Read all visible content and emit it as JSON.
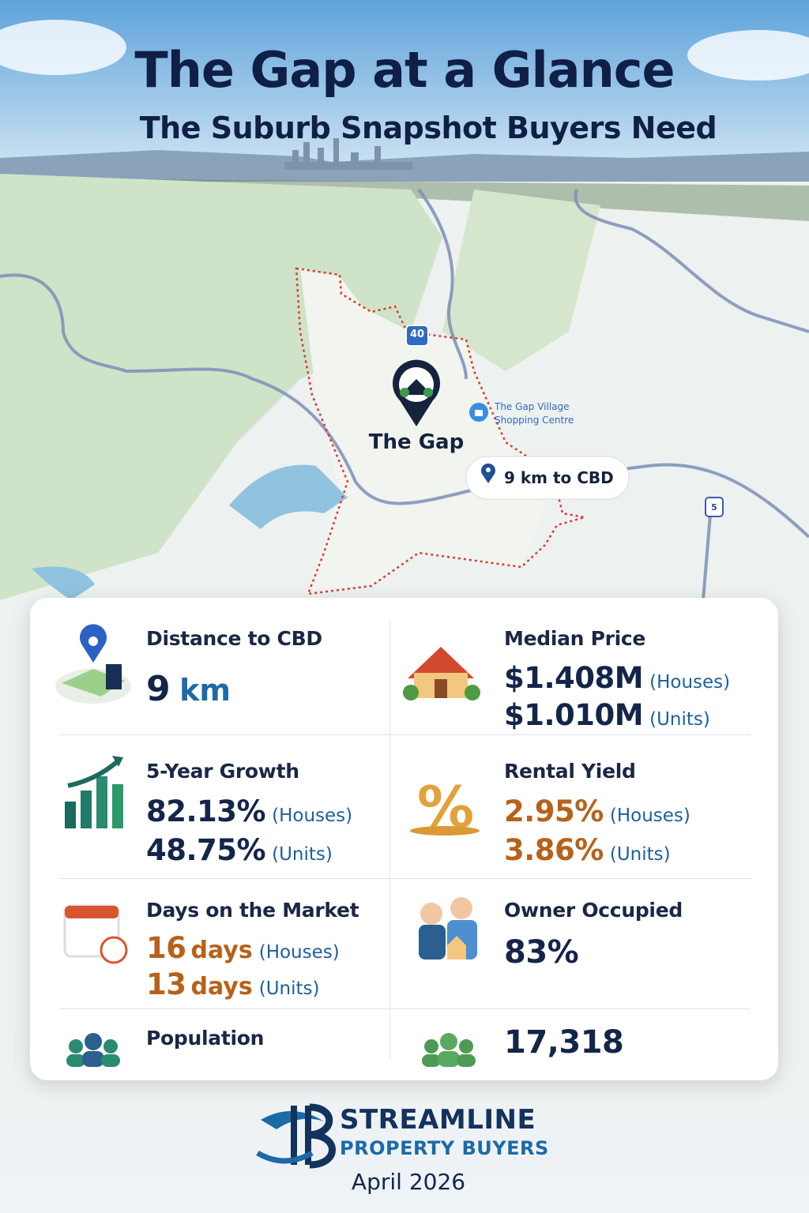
{
  "header": {
    "title": "The Gap at a Glance",
    "subtitle": "The Suburb Snapshot Buyers Need"
  },
  "map": {
    "road_sign_main": "40",
    "road_sign_east": "5",
    "suburb_label": "The Gap",
    "poi": [
      "The Gap Village",
      "Shopping Centre"
    ],
    "distance_badge": "9 km to CBD"
  },
  "stats": {
    "distance": {
      "label": "Distance to CBD",
      "value": "9",
      "unit": "km"
    },
    "median_price": {
      "label": "Median Price",
      "lines": [
        {
          "value": "$1.408M",
          "note": "(Houses)"
        },
        {
          "value": "$1.010M",
          "note": "(Units)"
        }
      ]
    },
    "growth": {
      "label": "5-Year Growth",
      "lines": [
        {
          "value": "82.13%",
          "note": "(Houses)"
        },
        {
          "value": "48.75%",
          "note": "(Units)"
        }
      ]
    },
    "rental_yield": {
      "label": "Rental Yield",
      "lines": [
        {
          "value": "2.95%",
          "note": "(Houses)"
        },
        {
          "value": "3.86%",
          "note": "(Units)"
        }
      ]
    },
    "days_on_market": {
      "label": "Days on the Market",
      "lines": [
        {
          "value": "16",
          "unit": "days",
          "note": "(Houses)"
        },
        {
          "value": "13",
          "unit": "days",
          "note": "(Units)"
        }
      ]
    },
    "owner_occupied": {
      "label": "Owner Occupied",
      "value": "83%"
    },
    "population": {
      "label": "Population",
      "value": "17,318"
    }
  },
  "footer": {
    "brand": "STREAMLINE",
    "brand_sub": "PROPERTY BUYERS",
    "date": "April 2026"
  }
}
